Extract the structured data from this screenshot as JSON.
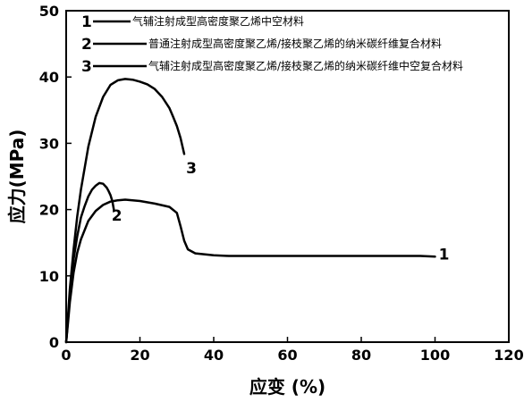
{
  "chart_data": {
    "type": "line",
    "title": "",
    "xlabel": "应变 (%)",
    "ylabel": "应力(MPa)",
    "xlim": [
      0,
      120
    ],
    "ylim": [
      0,
      50
    ],
    "xticks": [
      0,
      20,
      40,
      60,
      80,
      100,
      120
    ],
    "yticks": [
      0,
      10,
      20,
      30,
      40,
      50
    ],
    "grid": false,
    "legend_position": "top-left",
    "series": [
      {
        "id": "1",
        "name": "气辅注射成型高密度聚乙烯中空材料",
        "label": "1",
        "color": "#000000",
        "x": [
          0,
          0.5,
          1,
          2,
          3,
          4,
          6,
          8,
          10,
          12,
          14,
          16,
          20,
          24,
          28,
          30,
          31,
          32,
          33,
          35,
          40,
          44,
          50,
          60,
          70,
          80,
          90,
          96,
          100
        ],
        "y": [
          0,
          3,
          6,
          10.5,
          13.5,
          15.5,
          18.3,
          19.8,
          20.7,
          21.2,
          21.4,
          21.5,
          21.3,
          20.9,
          20.4,
          19.5,
          17.5,
          15.3,
          14,
          13.4,
          13.1,
          13,
          13,
          13,
          13,
          13,
          13,
          13,
          12.9
        ]
      },
      {
        "id": "2",
        "name": "普通注射成型高密度聚乙烯/接枝聚乙烯的纳米碳纤维复合材料",
        "label": "2",
        "color": "#000000",
        "x": [
          0,
          0.5,
          1,
          2,
          3,
          4,
          5,
          6,
          7,
          8,
          9,
          10,
          11,
          11.5,
          12,
          12.5,
          13
        ],
        "y": [
          0,
          3.5,
          7,
          12.5,
          16,
          18.8,
          20.5,
          22,
          23,
          23.6,
          24,
          23.9,
          23.3,
          22.8,
          22.2,
          21.3,
          19.8
        ]
      },
      {
        "id": "3",
        "name": "气辅注射成型高密度聚乙烯/接枝聚乙烯的纳米碳纤维中空复合材料",
        "label": "3",
        "color": "#000000",
        "x": [
          0,
          0.5,
          1,
          2,
          3,
          4,
          6,
          8,
          10,
          12,
          14,
          16,
          18,
          20,
          22,
          24,
          26,
          28,
          29,
          30,
          31,
          32
        ],
        "y": [
          0,
          4,
          8,
          14,
          19,
          23,
          29.5,
          34,
          37,
          38.8,
          39.5,
          39.7,
          39.6,
          39.3,
          38.9,
          38.2,
          37,
          35.3,
          34,
          32.6,
          30.8,
          28.4
        ]
      }
    ]
  }
}
